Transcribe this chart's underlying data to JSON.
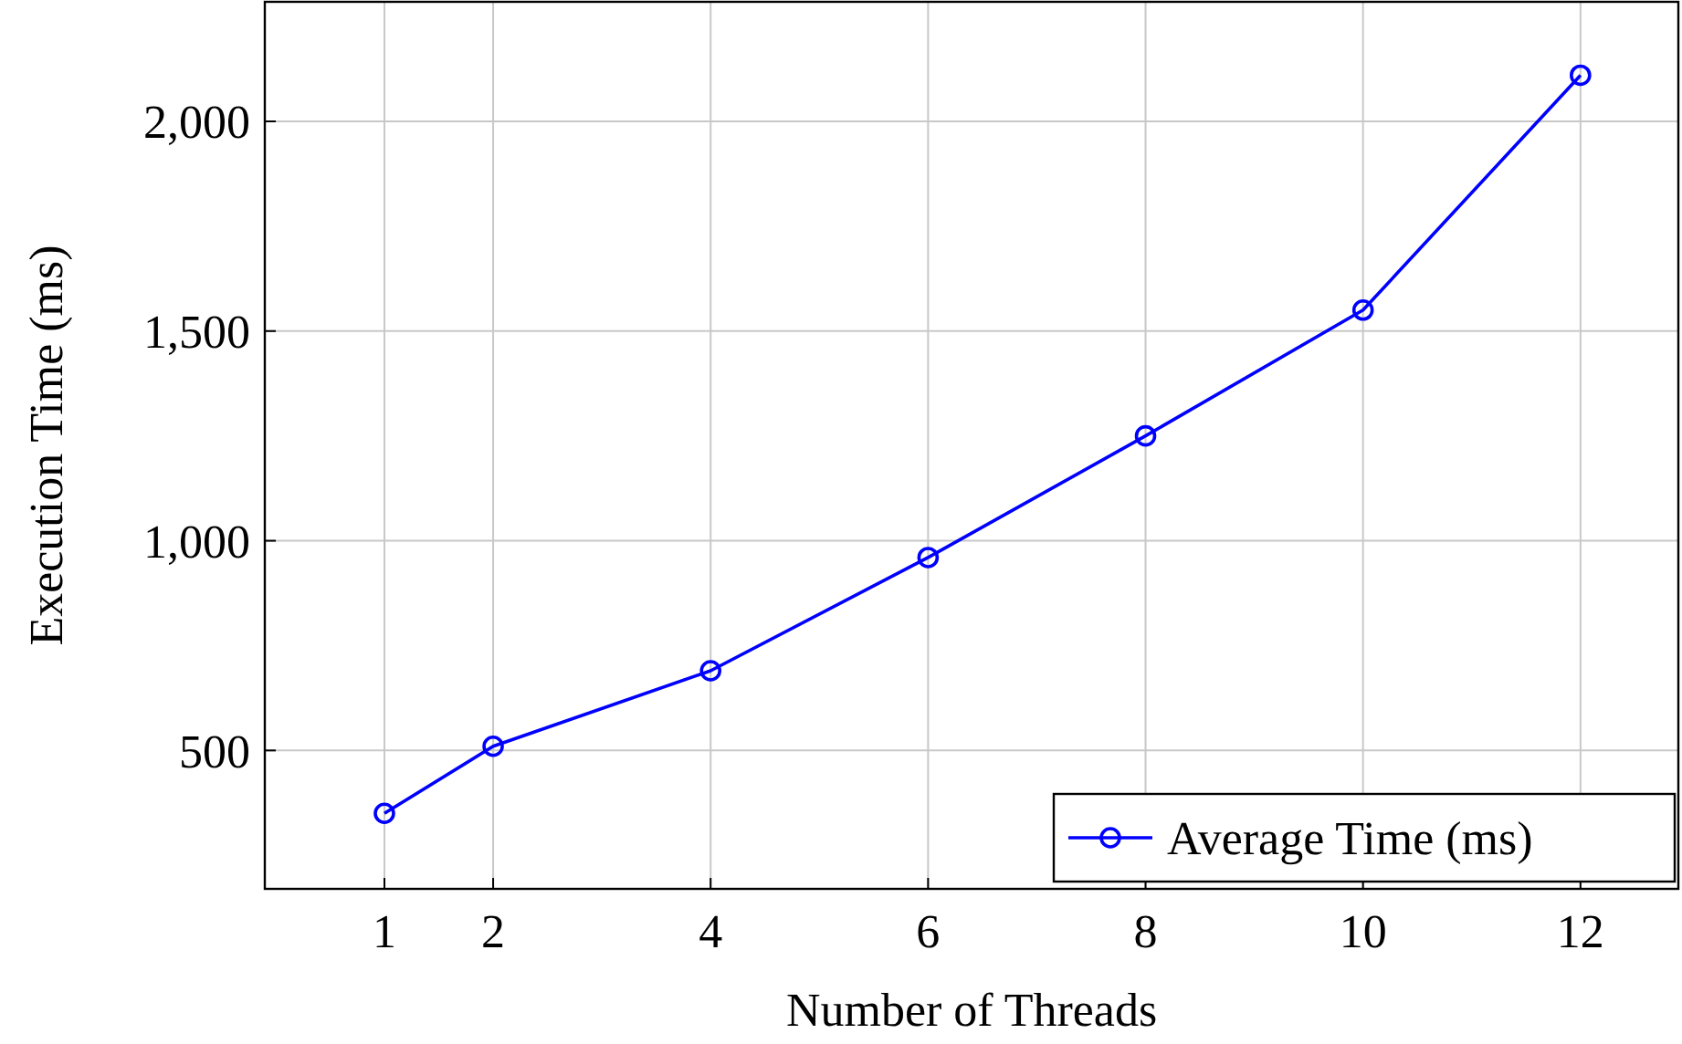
{
  "chart_data": {
    "type": "line",
    "xlabel": "Number of Threads",
    "ylabel": "Execution Time (ms)",
    "x": [
      1,
      2,
      4,
      6,
      8,
      10,
      12
    ],
    "series": [
      {
        "name": "Average Time (ms)",
        "color": "#0000ff",
        "values": [
          350,
          510,
          690,
          960,
          1250,
          1550,
          2110
        ]
      }
    ],
    "xlim": [
      -0.1,
      12.9
    ],
    "xticks": [
      1,
      2,
      4,
      6,
      8,
      10,
      12
    ],
    "ylim": [
      170,
      2285
    ],
    "yticks": [
      {
        "value": 500,
        "label": "500"
      },
      {
        "value": 1000,
        "label": "1,000"
      },
      {
        "value": 1500,
        "label": "1,500"
      },
      {
        "value": 2000,
        "label": "2,000"
      }
    ],
    "grid": true,
    "legend": "bottom right",
    "marker": "circle",
    "line_style": "solid"
  }
}
